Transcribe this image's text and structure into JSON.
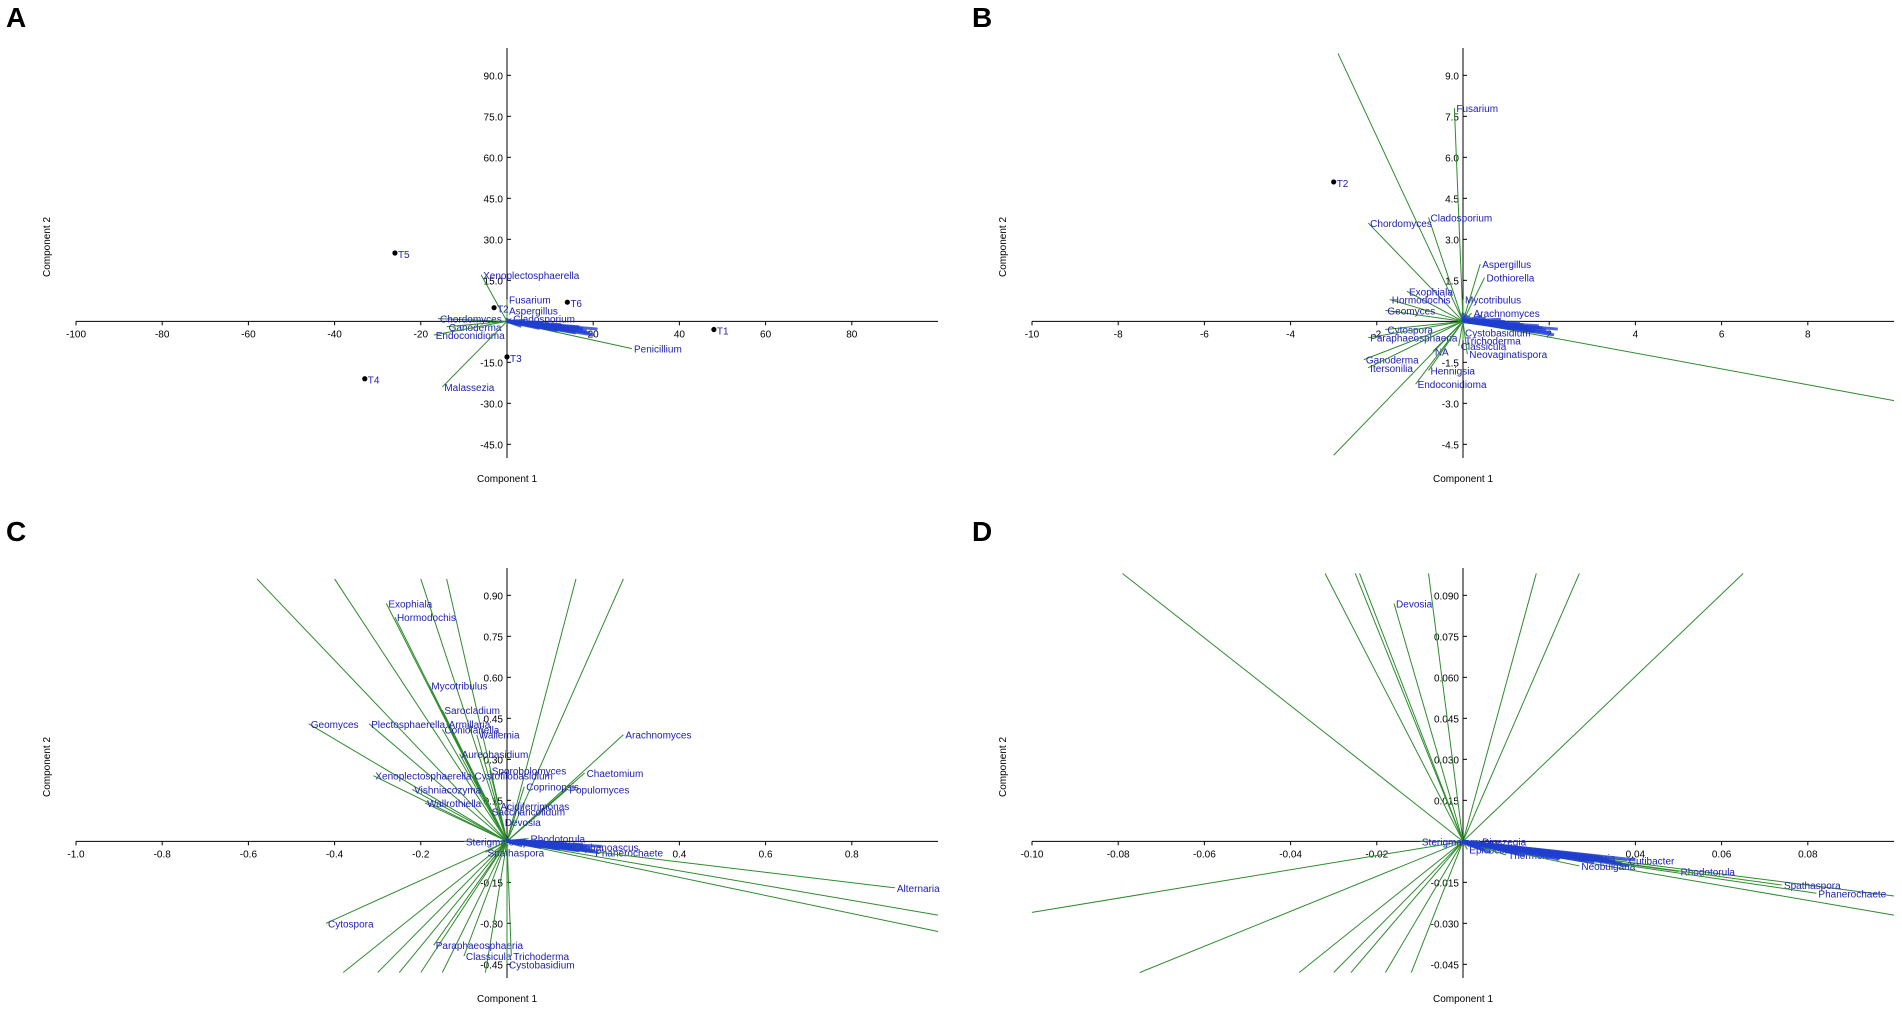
{
  "figure": {
    "panel_labels": [
      "A",
      "B",
      "C",
      "D"
    ]
  },
  "colors": {
    "axis": "#000000",
    "loading_line": "#2e8b2e",
    "label": "#2020b0",
    "point": "#000000",
    "cluster": "#1f3fd0"
  },
  "chart_data": [
    {
      "type": "scatter",
      "panel": "A",
      "xlabel": "Component 1",
      "ylabel": "Component 2",
      "xlim": [
        -100,
        100
      ],
      "ylim": [
        -50,
        100
      ],
      "xticks": [
        "-100",
        "-80",
        "-60",
        "-40",
        "-20",
        "20",
        "40",
        "60",
        "80"
      ],
      "xtick_values": [
        -100,
        -80,
        -60,
        -40,
        -20,
        20,
        40,
        60,
        80
      ],
      "yticks": [
        "90.0",
        "75.0",
        "60.0",
        "45.0",
        "30.0",
        "15.0",
        "-15.0",
        "-30.0",
        "-45.0"
      ],
      "ytick_values": [
        90,
        75,
        60,
        45,
        30,
        15,
        -15,
        -30,
        -45
      ],
      "samples": [
        {
          "label": "T5",
          "x": -26,
          "y": 25
        },
        {
          "label": "T2",
          "x": -3,
          "y": 5
        },
        {
          "label": "T6",
          "x": 14,
          "y": 7
        },
        {
          "label": "T3",
          "x": 0,
          "y": -13
        },
        {
          "label": "T4",
          "x": -33,
          "y": -21
        },
        {
          "label": "T1",
          "x": 48,
          "y": -3
        }
      ],
      "loadings": [
        {
          "label": "Xenoplectosphaerella",
          "x": -6,
          "y": 17
        },
        {
          "label": "Fusarium",
          "x": 0,
          "y": 8
        },
        {
          "label": "Aspergillus",
          "x": 0,
          "y": 4
        },
        {
          "label": "Cladosporium",
          "x": 1,
          "y": 1
        },
        {
          "label": "Chordomyces",
          "x": -16,
          "y": 1
        },
        {
          "label": "Ganoderma",
          "x": -14,
          "y": -2
        },
        {
          "label": "Endoconidioma",
          "x": -17,
          "y": -5
        },
        {
          "label": "Penicillium",
          "x": 29,
          "y": -10
        },
        {
          "label": "Malassezia",
          "x": -15,
          "y": -24
        }
      ],
      "cluster": {
        "x_from": 0,
        "x_to": 21,
        "y_from": 0,
        "y_to": -4
      }
    },
    {
      "type": "scatter",
      "panel": "B",
      "xlabel": "Component 1",
      "ylabel": "Component 2",
      "xlim": [
        -10,
        10
      ],
      "ylim": [
        -5,
        10
      ],
      "xticks": [
        "-10",
        "-8",
        "-6",
        "-4",
        "-2",
        "2",
        "4",
        "6",
        "8"
      ],
      "xtick_values": [
        -10,
        -8,
        -6,
        -4,
        -2,
        2,
        4,
        6,
        8
      ],
      "yticks": [
        "9.0",
        "7.5",
        "6.0",
        "4.5",
        "3.0",
        "1.5",
        "-1.5",
        "-3.0",
        "-4.5"
      ],
      "ytick_values": [
        9,
        7.5,
        6,
        4.5,
        3,
        1.5,
        -1.5,
        -3,
        -4.5
      ],
      "samples": [
        {
          "label": "T2",
          "x": -3.0,
          "y": 5.1
        }
      ],
      "loadings": [
        {
          "label": "Fusarium",
          "x": -0.2,
          "y": 7.8
        },
        {
          "label": "Cladosporium",
          "x": -0.8,
          "y": 3.8
        },
        {
          "label": "Chordomyces",
          "x": -2.2,
          "y": 3.6
        },
        {
          "label": "Aspergillus",
          "x": 0.4,
          "y": 2.1
        },
        {
          "label": "Dothiorella",
          "x": 0.5,
          "y": 1.6
        },
        {
          "label": "Exophiala",
          "x": -1.3,
          "y": 1.1
        },
        {
          "label": "Hormodochis",
          "x": -1.7,
          "y": 0.8
        },
        {
          "label": "Mycotribulus",
          "x": 0.0,
          "y": 0.8
        },
        {
          "label": "Geomyces",
          "x": -1.8,
          "y": 0.4
        },
        {
          "label": "Arachnomyces",
          "x": 0.2,
          "y": 0.3
        },
        {
          "label": "Cytospora",
          "x": -1.8,
          "y": -0.3
        },
        {
          "label": "Paraphaeosphaeria",
          "x": -2.2,
          "y": -0.6
        },
        {
          "label": "Trichoderma",
          "x": 0.0,
          "y": -0.7
        },
        {
          "label": "Classicula",
          "x": -0.1,
          "y": -0.9
        },
        {
          "label": "NA",
          "x": -0.7,
          "y": -1.1
        },
        {
          "label": "Neovaginatispora",
          "x": 0.1,
          "y": -1.2
        },
        {
          "label": "Ganoderma",
          "x": -2.3,
          "y": -1.4
        },
        {
          "label": "Itersonilia",
          "x": -2.2,
          "y": -1.7
        },
        {
          "label": "Hennigsia",
          "x": -0.8,
          "y": -1.8
        },
        {
          "label": "Endoconidioma",
          "x": -1.1,
          "y": -2.3
        },
        {
          "label": "Cystobasidium",
          "x": 0.0,
          "y": -0.4
        }
      ],
      "long_lines": [
        {
          "x": -2.9,
          "y": 9.8
        },
        {
          "x": 10.0,
          "y": -2.9
        },
        {
          "x": -3.0,
          "y": -4.9
        }
      ],
      "cluster": {
        "x_from": 0,
        "x_to": 2.2,
        "y_from": 0.2,
        "y_to": -0.4
      }
    },
    {
      "type": "scatter",
      "panel": "C",
      "xlabel": "Component 1",
      "ylabel": "Component 2",
      "xlim": [
        -1.0,
        1.0
      ],
      "ylim": [
        -0.5,
        1.0
      ],
      "xticks": [
        "-1.0",
        "-0.8",
        "-0.6",
        "-0.4",
        "-0.2",
        "0.4",
        "0.6",
        "0.8"
      ],
      "xtick_values": [
        -1.0,
        -0.8,
        -0.6,
        -0.4,
        -0.2,
        0.4,
        0.6,
        0.8
      ],
      "yticks": [
        "0.90",
        "0.75",
        "0.60",
        "0.45",
        "0.30",
        "0.15",
        "-0.15",
        "-0.30",
        "-0.45"
      ],
      "ytick_values": [
        0.9,
        0.75,
        0.6,
        0.45,
        0.3,
        0.15,
        -0.15,
        -0.3,
        -0.45
      ],
      "samples": [],
      "loadings": [
        {
          "label": "Exophiala",
          "x": -0.28,
          "y": 0.87
        },
        {
          "label": "Hormodochis",
          "x": -0.26,
          "y": 0.82
        },
        {
          "label": "Mycotribulus",
          "x": -0.18,
          "y": 0.57
        },
        {
          "label": "Sarocladium",
          "x": -0.15,
          "y": 0.48
        },
        {
          "label": "Plectosphaerella",
          "x": -0.32,
          "y": 0.43
        },
        {
          "label": "Armillaria",
          "x": -0.14,
          "y": 0.43
        },
        {
          "label": "Coniolariella",
          "x": -0.15,
          "y": 0.41
        },
        {
          "label": "Wallemia",
          "x": -0.07,
          "y": 0.39
        },
        {
          "label": "Geomyces",
          "x": -0.46,
          "y": 0.43
        },
        {
          "label": "Arachnomyces",
          "x": 0.27,
          "y": 0.39
        },
        {
          "label": "Aureobasidium",
          "x": -0.11,
          "y": 0.32
        },
        {
          "label": "Sporobolomyces",
          "x": -0.04,
          "y": 0.26
        },
        {
          "label": "Chaetomium",
          "x": 0.18,
          "y": 0.25
        },
        {
          "label": "Xenoplectosphaerella",
          "x": -0.31,
          "y": 0.24
        },
        {
          "label": "Cystofilobasidium",
          "x": -0.08,
          "y": 0.24
        },
        {
          "label": "Coprinopsis",
          "x": 0.04,
          "y": 0.2
        },
        {
          "label": "Vishniacozyma",
          "x": -0.22,
          "y": 0.19
        },
        {
          "label": "Populomyces",
          "x": 0.14,
          "y": 0.19
        },
        {
          "label": "Wallrothiella",
          "x": -0.19,
          "y": 0.14
        },
        {
          "label": "Acidiferrimonas",
          "x": -0.02,
          "y": 0.13
        },
        {
          "label": "Saccharicolidum",
          "x": -0.04,
          "y": 0.11
        },
        {
          "label": "Devosia",
          "x": -0.01,
          "y": 0.07
        },
        {
          "label": "Rhodotorula",
          "x": 0.05,
          "y": 0.01
        },
        {
          "label": "Sterigmatomyces",
          "x": -0.1,
          "y": 0.0
        },
        {
          "label": "Spathaspora",
          "x": -0.05,
          "y": -0.04
        },
        {
          "label": "Aphanoascus",
          "x": 0.16,
          "y": -0.02
        },
        {
          "label": "Phanerochaete",
          "x": 0.2,
          "y": -0.04
        },
        {
          "label": "Alternaria",
          "x": 0.9,
          "y": -0.17
        },
        {
          "label": "Cytospora",
          "x": -0.42,
          "y": -0.3
        },
        {
          "label": "Paraphaeosphaeria",
          "x": -0.17,
          "y": -0.38
        },
        {
          "label": "Classicula",
          "x": -0.1,
          "y": -0.42
        },
        {
          "label": "Trichoderma",
          "x": 0.01,
          "y": -0.42
        },
        {
          "label": "Cystobasidium",
          "x": 0.0,
          "y": -0.45
        }
      ],
      "long_lines": [
        {
          "x": -0.58,
          "y": 0.96
        },
        {
          "x": -0.4,
          "y": 0.96
        },
        {
          "x": -0.2,
          "y": 0.96
        },
        {
          "x": -0.14,
          "y": 0.96
        },
        {
          "x": 0.16,
          "y": 0.96
        },
        {
          "x": 0.27,
          "y": 0.96
        },
        {
          "x": 1.0,
          "y": -0.27
        },
        {
          "x": 1.0,
          "y": -0.33
        },
        {
          "x": -0.38,
          "y": -0.48
        },
        {
          "x": -0.3,
          "y": -0.48
        },
        {
          "x": -0.25,
          "y": -0.48
        },
        {
          "x": -0.2,
          "y": -0.48
        },
        {
          "x": -0.15,
          "y": -0.48
        },
        {
          "x": -0.05,
          "y": -0.48
        }
      ],
      "cluster": {
        "x_from": 0,
        "x_to": 0.22,
        "y_from": 0,
        "y_to": -0.03
      }
    },
    {
      "type": "scatter",
      "panel": "D",
      "xlabel": "Component 1",
      "ylabel": "Component 2",
      "xlim": [
        -0.1,
        0.1
      ],
      "ylim": [
        -0.05,
        0.1
      ],
      "xticks": [
        "-0.10",
        "-0.08",
        "-0.06",
        "-0.04",
        "-0.02",
        "0.04",
        "0.06",
        "0.08"
      ],
      "xtick_values": [
        -0.1,
        -0.08,
        -0.06,
        -0.04,
        -0.02,
        0.04,
        0.06,
        0.08
      ],
      "yticks": [
        "0.090",
        "0.075",
        "0.060",
        "0.045",
        "0.030",
        "0.015",
        "-0.015",
        "-0.030",
        "-0.045"
      ],
      "ytick_values": [
        0.09,
        0.075,
        0.06,
        0.045,
        0.03,
        0.015,
        -0.015,
        -0.03,
        -0.045
      ],
      "samples": [],
      "loadings": [
        {
          "label": "Devosia",
          "x": -0.016,
          "y": 0.087
        },
        {
          "label": "Sterigmatomyces",
          "x": -0.01,
          "y": 0.0
        },
        {
          "label": "Dioszegia",
          "x": 0.004,
          "y": 0.0
        },
        {
          "label": "Epicoccum",
          "x": 0.001,
          "y": -0.003
        },
        {
          "label": "Thermoleophilum",
          "x": 0.01,
          "y": -0.005
        },
        {
          "label": "Jenneria",
          "x": 0.026,
          "y": -0.006
        },
        {
          "label": "Neobulgaria",
          "x": 0.027,
          "y": -0.009
        },
        {
          "label": "Rhodotorula",
          "x": 0.05,
          "y": -0.011
        },
        {
          "label": "Spathaspora",
          "x": 0.074,
          "y": -0.016
        },
        {
          "label": "Phanerochaete",
          "x": 0.082,
          "y": -0.019
        },
        {
          "label": "Cutibacter",
          "x": 0.038,
          "y": -0.007
        }
      ],
      "long_lines": [
        {
          "x": -0.079,
          "y": 0.098
        },
        {
          "x": -0.032,
          "y": 0.098
        },
        {
          "x": -0.025,
          "y": 0.098
        },
        {
          "x": -0.024,
          "y": 0.098
        },
        {
          "x": -0.008,
          "y": 0.098
        },
        {
          "x": 0.017,
          "y": 0.098
        },
        {
          "x": 0.027,
          "y": 0.098
        },
        {
          "x": 0.065,
          "y": 0.098
        },
        {
          "x": 0.1,
          "y": -0.027
        },
        {
          "x": 0.1,
          "y": -0.02
        },
        {
          "x": -0.075,
          "y": -0.048
        },
        {
          "x": -0.038,
          "y": -0.048
        },
        {
          "x": -0.03,
          "y": -0.048
        },
        {
          "x": -0.026,
          "y": -0.048
        },
        {
          "x": -0.018,
          "y": -0.048
        },
        {
          "x": -0.012,
          "y": -0.048
        },
        {
          "x": -0.1,
          "y": -0.026
        }
      ],
      "cluster": {
        "x_from": 0,
        "x_to": 0.04,
        "y_from": -0.002,
        "y_to": -0.008
      }
    }
  ]
}
